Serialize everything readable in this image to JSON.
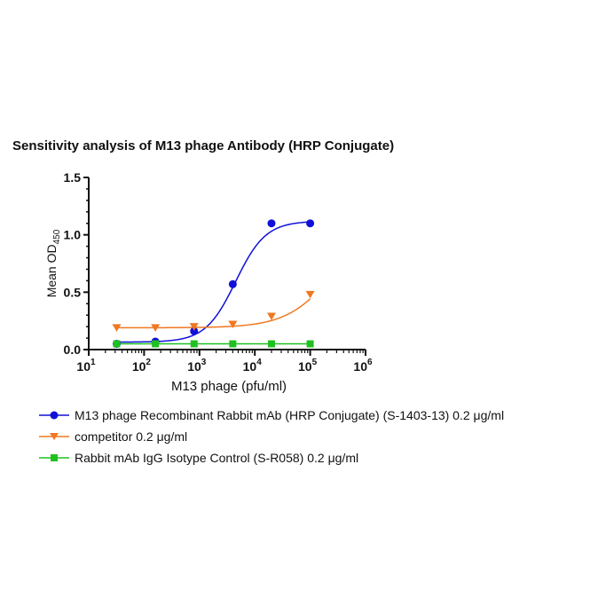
{
  "chart_data": {
    "type": "scatter",
    "title": "Sensitivity analysis of M13 phage Antibody (HRP Conjugate)",
    "xlabel": "M13 phage (pfu/ml)",
    "ylabel": {
      "main": "Mean OD",
      "subscript": "450"
    },
    "x_scale": "log",
    "xlim": [
      10,
      1000000
    ],
    "ylim": [
      0,
      1.5
    ],
    "x_ticks": [
      {
        "value": 10,
        "base": "10",
        "exp": "1"
      },
      {
        "value": 100,
        "base": "10",
        "exp": "2"
      },
      {
        "value": 1000,
        "base": "10",
        "exp": "3"
      },
      {
        "value": 10000,
        "base": "10",
        "exp": "4"
      },
      {
        "value": 100000,
        "base": "10",
        "exp": "5"
      },
      {
        "value": 1000000,
        "base": "10",
        "exp": "6"
      }
    ],
    "y_ticks": [
      {
        "value": 0,
        "label": "0.0"
      },
      {
        "value": 0.5,
        "label": "0.5"
      },
      {
        "value": 1.0,
        "label": "1.0"
      },
      {
        "value": 1.5,
        "label": "1.5"
      }
    ],
    "grid": false,
    "legend_position": "bottom",
    "series": [
      {
        "name": "M13 phage Recombinant Rabbit mAb (HRP Conjugate) (S-1403-13) 0.2 μg/ml",
        "color": "#1010d8",
        "marker": "circle",
        "x": [
          32,
          160,
          800,
          4000,
          20000,
          100000
        ],
        "y": [
          0.05,
          0.07,
          0.16,
          0.57,
          1.1,
          1.1
        ],
        "fit": {
          "bottom": 0.065,
          "top": 1.12,
          "ec50": 4500,
          "hill": 1.6
        }
      },
      {
        "name": "competitor 0.2 μg/ml",
        "color": "#f07820",
        "marker": "triangle-down",
        "x": [
          32,
          160,
          800,
          4000,
          20000,
          100000
        ],
        "y": [
          0.19,
          0.19,
          0.2,
          0.22,
          0.29,
          0.48
        ],
        "fit": {
          "bottom": 0.19,
          "top": 1.2,
          "ec50": 300000,
          "hill": 1.0
        }
      },
      {
        "name": "Rabbit mAb IgG Isotype Control (S-R058) 0.2 μg/ml",
        "color": "#20c020",
        "marker": "square",
        "x": [
          32,
          160,
          800,
          4000,
          20000,
          100000
        ],
        "y": [
          0.05,
          0.05,
          0.05,
          0.05,
          0.05,
          0.05
        ],
        "fit": null
      }
    ]
  }
}
